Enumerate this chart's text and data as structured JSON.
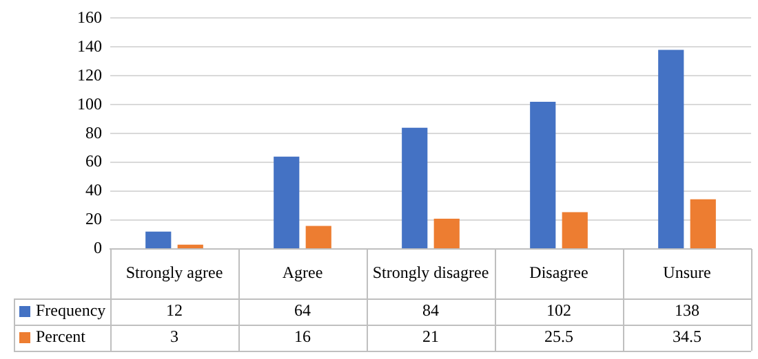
{
  "chart_data": {
    "type": "bar",
    "categories": [
      "Strongly agree",
      "Agree",
      "Strongly disagree",
      "Disagree",
      "Unsure"
    ],
    "series": [
      {
        "name": "Frequency",
        "color": "#4472c4",
        "values": [
          12,
          64,
          84,
          102,
          138
        ]
      },
      {
        "name": "Percent",
        "color": "#ed7d31",
        "values": [
          3,
          16,
          21,
          25.5,
          34.5
        ]
      }
    ],
    "ylim": [
      0,
      160
    ],
    "yticks": [
      0,
      20,
      40,
      60,
      80,
      100,
      120,
      140,
      160
    ],
    "grid": "y",
    "legend": "bottom",
    "data_labels": true
  }
}
